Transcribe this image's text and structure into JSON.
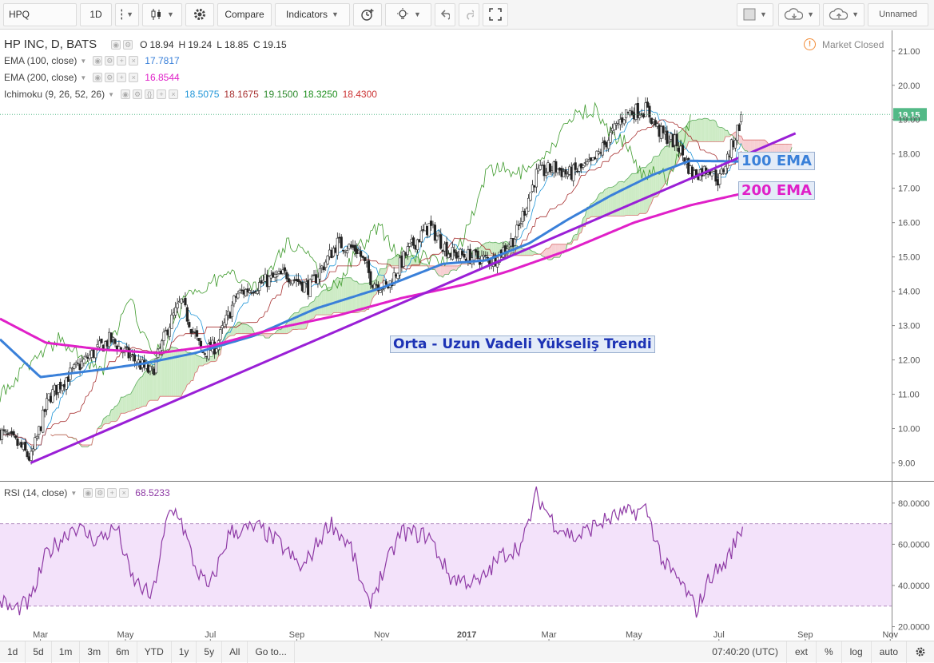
{
  "toolbar": {
    "symbol": "HPQ",
    "interval": "1D",
    "compare_label": "Compare",
    "indicators_label": "Indicators",
    "layout_name": "Unnamed"
  },
  "legend": {
    "title": "HP INC, D, BATS",
    "o_label": "O",
    "o": "18.94",
    "h_label": "H",
    "h": "19.24",
    "l_label": "L",
    "l": "18.85",
    "c_label": "C",
    "c": "19.15",
    "ema100": {
      "label": "EMA (100, close)",
      "value": "17.7817",
      "color": "#3a80d9"
    },
    "ema200": {
      "label": "EMA (200, close)",
      "value": "16.8544",
      "color": "#e020c8"
    },
    "ichimoku": {
      "label": "Ichimoku (9, 26, 52, 26)",
      "values": [
        "18.5075",
        "18.1675",
        "19.1500",
        "18.3250",
        "18.4300"
      ],
      "colors": [
        "#2196d8",
        "#a83232",
        "#2e8b2e",
        "#1f8f1f",
        "#cc3333"
      ]
    },
    "rsi": {
      "label": "RSI (14, close)",
      "value": "68.5233",
      "color": "#8e3aa5"
    }
  },
  "market_status": "Market Closed",
  "annotations": {
    "ema100": "100 EMA",
    "ema200": "200 EMA",
    "trend": "Orta - Uzun Vadeli Yükseliş Trendi"
  },
  "bottom": {
    "ranges": [
      "1d",
      "5d",
      "1m",
      "3m",
      "6m",
      "YTD",
      "1y",
      "5y",
      "All"
    ],
    "goto_label": "Go to...",
    "time": "07:40:20 (UTC)",
    "ext_label": "ext",
    "pct_label": "%",
    "log_label": "log",
    "auto_label": "auto"
  },
  "colors": {
    "up": "#53b987",
    "down": "#eb4d5c",
    "ema100": "#3a80d9",
    "ema200": "#e020c8",
    "trendline": "#9a1fd6",
    "tenkan": "#2196d8",
    "kijun": "#a83232",
    "chikou": "#3e9a2c",
    "cloud_green": "#cdebc5",
    "cloud_red": "#f7cfd2",
    "rsi_line": "#8e3aa5",
    "rsi_band": "#f3e2fa"
  },
  "chart_data": {
    "type": "candlestick",
    "symbol": "HPQ",
    "interval": "1D",
    "x_ticks": [
      "Mar",
      "May",
      "Jul",
      "Sep",
      "Nov",
      "2017",
      "Mar",
      "May",
      "Jul",
      "Sep",
      "Nov"
    ],
    "price_axis": {
      "ticks": [
        9.0,
        10.0,
        11.0,
        12.0,
        13.0,
        14.0,
        15.0,
        16.0,
        17.0,
        18.0,
        19.0,
        20.0,
        21.0
      ],
      "range": [
        8.5,
        21.6
      ],
      "last_price": 19.15
    },
    "rsi_axis": {
      "ticks": [
        20,
        40,
        60,
        80
      ],
      "range": [
        14,
        90
      ],
      "bands": [
        30,
        70
      ],
      "last": 68.5233
    },
    "close_anchors": [
      {
        "date": "2016-02-01",
        "close": 9.9
      },
      {
        "date": "2016-02-15",
        "close": 9.5
      },
      {
        "date": "2016-02-23",
        "close": 9.1
      },
      {
        "date": "2016-03-07",
        "close": 10.9
      },
      {
        "date": "2016-03-20",
        "close": 11.5
      },
      {
        "date": "2016-04-05",
        "close": 12.1
      },
      {
        "date": "2016-04-20",
        "close": 12.6
      },
      {
        "date": "2016-05-01",
        "close": 12.2
      },
      {
        "date": "2016-05-20",
        "close": 11.6
      },
      {
        "date": "2016-06-01",
        "close": 13.0
      },
      {
        "date": "2016-06-10",
        "close": 13.7
      },
      {
        "date": "2016-06-25",
        "close": 12.2
      },
      {
        "date": "2016-07-05",
        "close": 12.4
      },
      {
        "date": "2016-07-20",
        "close": 13.9
      },
      {
        "date": "2016-08-10",
        "close": 14.3
      },
      {
        "date": "2016-08-25",
        "close": 14.5
      },
      {
        "date": "2016-09-10",
        "close": 14.1
      },
      {
        "date": "2016-09-30",
        "close": 15.4
      },
      {
        "date": "2016-10-15",
        "close": 15.2
      },
      {
        "date": "2016-10-25",
        "close": 14.3
      },
      {
        "date": "2016-11-05",
        "close": 14.1
      },
      {
        "date": "2016-11-20",
        "close": 15.2
      },
      {
        "date": "2016-12-05",
        "close": 15.9
      },
      {
        "date": "2016-12-20",
        "close": 15.1
      },
      {
        "date": "2017-01-05",
        "close": 15.0
      },
      {
        "date": "2017-01-20",
        "close": 14.9
      },
      {
        "date": "2017-02-05",
        "close": 15.6
      },
      {
        "date": "2017-02-20",
        "close": 17.4
      },
      {
        "date": "2017-03-05",
        "close": 17.6
      },
      {
        "date": "2017-03-15",
        "close": 17.4
      },
      {
        "date": "2017-04-01",
        "close": 17.7
      },
      {
        "date": "2017-04-12",
        "close": 18.4
      },
      {
        "date": "2017-04-25",
        "close": 19.2
      },
      {
        "date": "2017-05-10",
        "close": 19.3
      },
      {
        "date": "2017-05-20",
        "close": 18.6
      },
      {
        "date": "2017-06-01",
        "close": 18.3
      },
      {
        "date": "2017-06-12",
        "close": 17.4
      },
      {
        "date": "2017-06-25",
        "close": 17.6
      },
      {
        "date": "2017-07-01",
        "close": 17.2
      },
      {
        "date": "2017-07-10",
        "close": 18.2
      },
      {
        "date": "2017-07-18",
        "close": 19.15
      }
    ],
    "rsi_anchors": [
      {
        "date": "2016-02-01",
        "rsi": 33
      },
      {
        "date": "2016-02-10",
        "rsi": 28
      },
      {
        "date": "2016-02-23",
        "rsi": 32
      },
      {
        "date": "2016-03-05",
        "rsi": 55
      },
      {
        "date": "2016-03-25",
        "rsi": 69
      },
      {
        "date": "2016-04-10",
        "rsi": 62
      },
      {
        "date": "2016-04-25",
        "rsi": 68
      },
      {
        "date": "2016-05-05",
        "rsi": 44
      },
      {
        "date": "2016-05-20",
        "rsi": 34
      },
      {
        "date": "2016-06-01",
        "rsi": 75
      },
      {
        "date": "2016-06-08",
        "rsi": 76
      },
      {
        "date": "2016-06-20",
        "rsi": 49
      },
      {
        "date": "2016-06-30",
        "rsi": 38
      },
      {
        "date": "2016-07-15",
        "rsi": 66
      },
      {
        "date": "2016-08-05",
        "rsi": 68
      },
      {
        "date": "2016-08-20",
        "rsi": 60
      },
      {
        "date": "2016-09-05",
        "rsi": 48
      },
      {
        "date": "2016-09-25",
        "rsi": 71
      },
      {
        "date": "2016-10-10",
        "rsi": 58
      },
      {
        "date": "2016-10-22",
        "rsi": 30
      },
      {
        "date": "2016-11-15",
        "rsi": 66
      },
      {
        "date": "2016-12-05",
        "rsi": 64
      },
      {
        "date": "2016-12-20",
        "rsi": 44
      },
      {
        "date": "2017-01-10",
        "rsi": 41
      },
      {
        "date": "2017-01-25",
        "rsi": 54
      },
      {
        "date": "2017-02-10",
        "rsi": 60
      },
      {
        "date": "2017-02-20",
        "rsi": 84
      },
      {
        "date": "2017-03-05",
        "rsi": 70
      },
      {
        "date": "2017-03-20",
        "rsi": 63
      },
      {
        "date": "2017-04-05",
        "rsi": 70
      },
      {
        "date": "2017-04-20",
        "rsi": 74
      },
      {
        "date": "2017-05-10",
        "rsi": 77
      },
      {
        "date": "2017-05-22",
        "rsi": 51
      },
      {
        "date": "2017-06-05",
        "rsi": 40
      },
      {
        "date": "2017-06-15",
        "rsi": 28
      },
      {
        "date": "2017-06-25",
        "rsi": 45
      },
      {
        "date": "2017-07-05",
        "rsi": 50
      },
      {
        "date": "2017-07-18",
        "rsi": 68.5
      }
    ],
    "ema100_anchors": [
      {
        "date": "2016-02-01",
        "ema": 12.6
      },
      {
        "date": "2016-03-01",
        "ema": 11.5
      },
      {
        "date": "2016-04-10",
        "ema": 11.7
      },
      {
        "date": "2016-05-15",
        "ema": 11.9
      },
      {
        "date": "2016-06-20",
        "ema": 12.2
      },
      {
        "date": "2016-08-01",
        "ema": 12.7
      },
      {
        "date": "2016-09-15",
        "ema": 13.5
      },
      {
        "date": "2016-11-01",
        "ema": 14.1
      },
      {
        "date": "2016-12-15",
        "ema": 14.8
      },
      {
        "date": "2017-01-15",
        "ema": 14.9
      },
      {
        "date": "2017-02-15",
        "ema": 15.4
      },
      {
        "date": "2017-03-15",
        "ema": 16.1
      },
      {
        "date": "2017-04-15",
        "ema": 16.8
      },
      {
        "date": "2017-05-15",
        "ema": 17.4
      },
      {
        "date": "2017-06-10",
        "ema": 17.8
      },
      {
        "date": "2017-07-18",
        "ema": 17.78
      }
    ],
    "ema200_anchors": [
      {
        "date": "2016-02-01",
        "ema": 13.2
      },
      {
        "date": "2016-03-05",
        "ema": 12.5
      },
      {
        "date": "2016-04-15",
        "ema": 12.3
      },
      {
        "date": "2016-05-25",
        "ema": 12.2
      },
      {
        "date": "2016-07-01",
        "ema": 12.4
      },
      {
        "date": "2016-08-15",
        "ema": 12.9
      },
      {
        "date": "2016-10-01",
        "ema": 13.3
      },
      {
        "date": "2016-11-15",
        "ema": 13.8
      },
      {
        "date": "2016-12-31",
        "ema": 14.2
      },
      {
        "date": "2017-02-01",
        "ema": 14.6
      },
      {
        "date": "2017-03-15",
        "ema": 15.2
      },
      {
        "date": "2017-05-01",
        "ema": 16.0
      },
      {
        "date": "2017-06-10",
        "ema": 16.5
      },
      {
        "date": "2017-07-18",
        "ema": 16.85
      }
    ],
    "trendline": {
      "from": {
        "date": "2016-02-23",
        "price": 9.0
      },
      "to": {
        "date": "2017-08-25",
        "price": 18.6
      }
    }
  }
}
